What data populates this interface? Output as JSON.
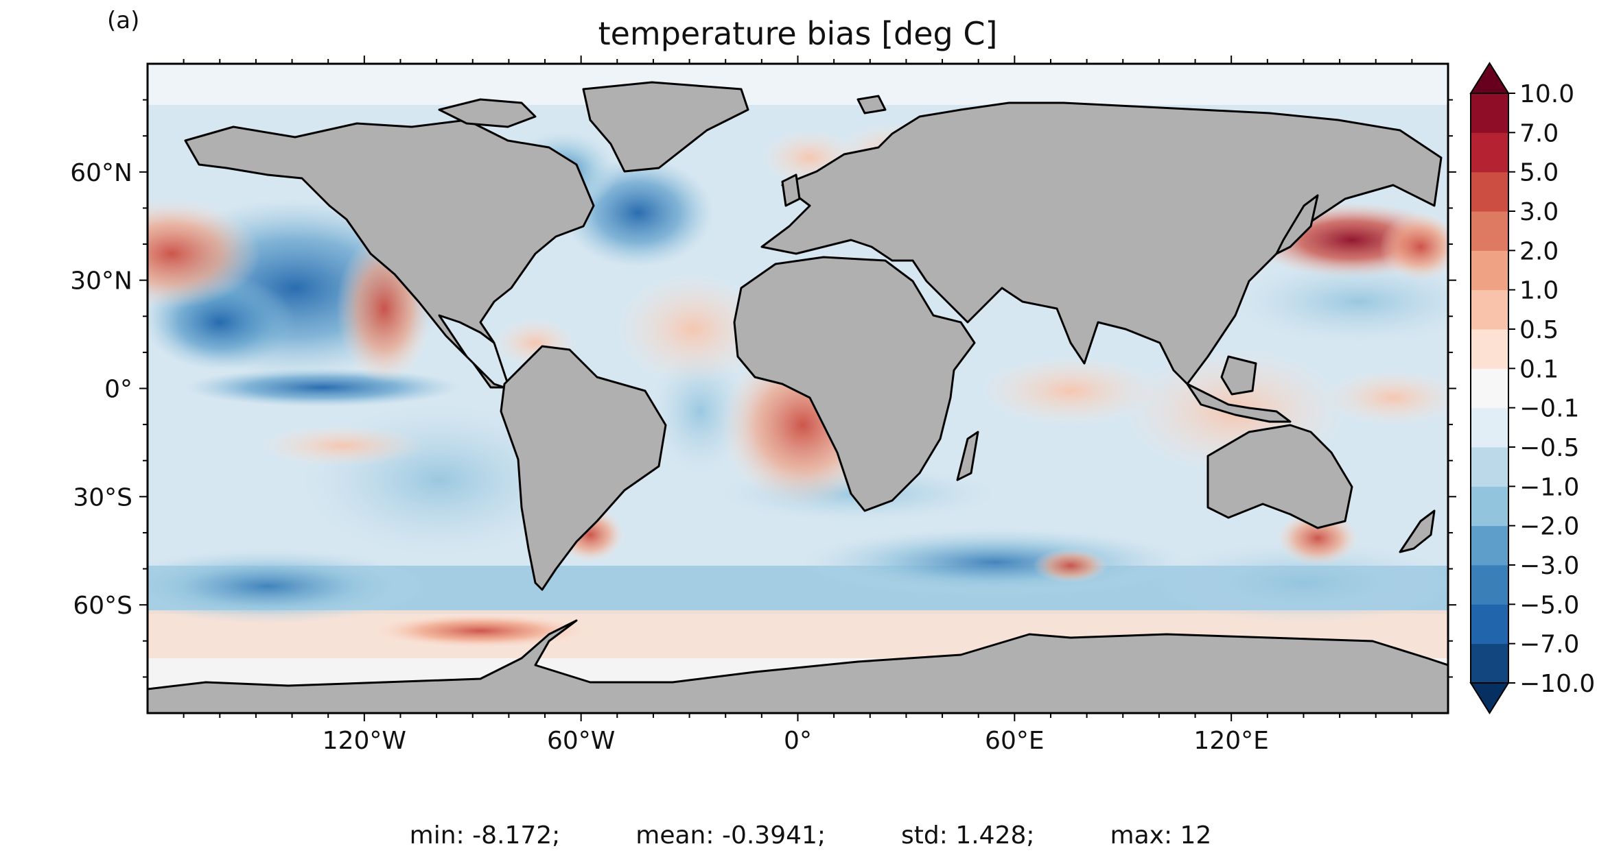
{
  "panel_label": "(a)",
  "title": "temperature bias [deg C]",
  "map": {
    "projection": "PlateCarree",
    "lon_range": [
      -180,
      180
    ],
    "lat_range": [
      -90,
      90
    ],
    "land_color": "#b0b0b0",
    "coastline_color": "#000000",
    "colormap": "RdBu_r",
    "x_ticks": [
      {
        "lon": -120,
        "label": "120°W"
      },
      {
        "lon": -60,
        "label": "60°W"
      },
      {
        "lon": 0,
        "label": "0°"
      },
      {
        "lon": 60,
        "label": "60°E"
      },
      {
        "lon": 120,
        "label": "120°E"
      }
    ],
    "y_ticks": [
      {
        "lat": 60,
        "label": "60°N"
      },
      {
        "lat": 30,
        "label": "30°N"
      },
      {
        "lat": 0,
        "label": "0°"
      },
      {
        "lat": -30,
        "label": "30°S"
      },
      {
        "lat": -60,
        "label": "60°S"
      }
    ]
  },
  "colorbar": {
    "extend": "both",
    "levels": [
      {
        "label": "−10.0"
      },
      {
        "label": "−7.0"
      },
      {
        "label": "−5.0"
      },
      {
        "label": "−3.0"
      },
      {
        "label": "−2.0"
      },
      {
        "label": "−1.0"
      },
      {
        "label": "−0.5"
      },
      {
        "label": "−0.1"
      },
      {
        "label": "0.1"
      },
      {
        "label": "0.5"
      },
      {
        "label": "1.0"
      },
      {
        "label": "2.0"
      },
      {
        "label": "3.0"
      },
      {
        "label": "5.0"
      },
      {
        "label": "7.0"
      },
      {
        "label": "10.0"
      }
    ],
    "colors": [
      "#053061",
      "#12467f",
      "#2166ac",
      "#3b7fb9",
      "#5d9ecb",
      "#93c4de",
      "#bcd9ea",
      "#e2eef5",
      "#f7f7f7",
      "#fde1d2",
      "#f8c3aa",
      "#f0a285",
      "#df7a62",
      "#cc4e43",
      "#b52232",
      "#8f0d27",
      "#67001f"
    ],
    "under_color": "#053061",
    "over_color": "#67001f"
  },
  "stats": {
    "min": "min: -8.172;",
    "mean": "mean: -0.3941;",
    "std": "std: 1.428;",
    "max": "max: 12"
  }
}
